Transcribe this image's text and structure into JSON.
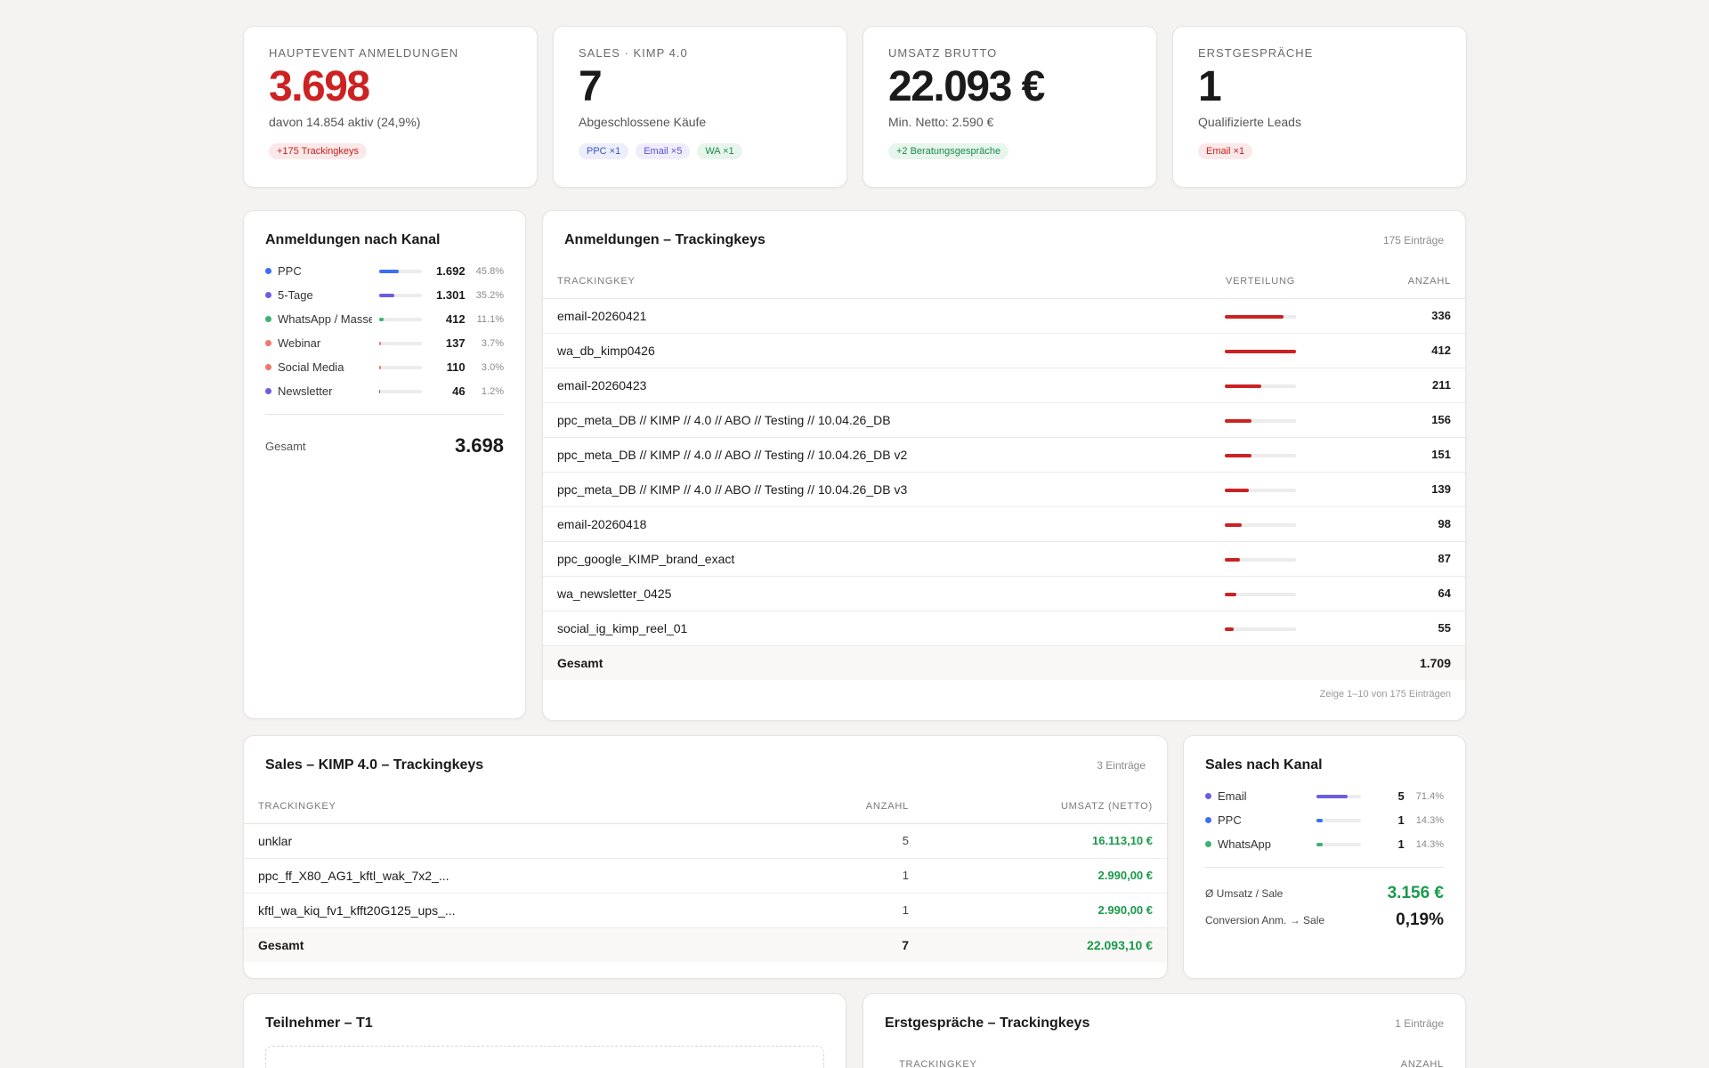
{
  "colors": {
    "red": "#cc2222",
    "green": "#1a9a4a",
    "blue": "#3b6ef5",
    "indigo": "#6a5ee0",
    "emerald": "#3cb371",
    "salmon": "#f0776a"
  },
  "kpis": [
    {
      "label": "HAUPTEVENT ANMELDUNGEN",
      "value": "3.698",
      "sub": "davon 14.854 aktiv (24,9%)",
      "pills": [
        "+175 Trackingkeys"
      ]
    },
    {
      "label": "SALES · KIMP 4.0",
      "value": "7",
      "sub": "Abgeschlossene Käufe",
      "pills": [
        "PPC ×1",
        "Email ×5",
        "WA ×1"
      ]
    },
    {
      "label": "UMSATZ BRUTTO",
      "value": "22.093 €",
      "sub": "Min. Netto: 2.590 €",
      "pills": [
        "+2 Beratungsgespräche"
      ]
    },
    {
      "label": "ERSTGESPRÄCHE",
      "value": "1",
      "sub": "Qualifizierte Leads",
      "pills": [
        "Email ×1"
      ]
    }
  ],
  "kanal": {
    "title": "Anmeldungen nach Kanal",
    "rows": [
      {
        "name": "PPC",
        "count": "1.692",
        "pct": "45.8%",
        "share": 0.458,
        "color": "#3b6ef5"
      },
      {
        "name": "5-Tage",
        "count": "1.301",
        "pct": "35.2%",
        "share": 0.352,
        "color": "#6a5ee0"
      },
      {
        "name": "WhatsApp / Masse",
        "count": "412",
        "pct": "11.1%",
        "share": 0.111,
        "color": "#3cb371"
      },
      {
        "name": "Webinar",
        "count": "137",
        "pct": "3.7%",
        "share": 0.037,
        "color": "#f0776a"
      },
      {
        "name": "Social Media",
        "count": "110",
        "pct": "3.0%",
        "share": 0.03,
        "color": "#f0776a"
      },
      {
        "name": "Newsletter",
        "count": "46",
        "pct": "1.2%",
        "share": 0.012,
        "color": "#6a5ee0"
      }
    ],
    "total_label": "Gesamt",
    "total": "3.698"
  },
  "tk": {
    "title": "Anmeldungen – Trackingkeys",
    "entries": "175 Einträge",
    "headers": [
      "TRACKINGKEY",
      "VERTEILUNG",
      "ANZAHL"
    ],
    "rows": [
      {
        "key": "email-20260421",
        "count": "336",
        "share": 0.82
      },
      {
        "key": "wa_db_kimp0426",
        "count": "412",
        "share": 1.0
      },
      {
        "key": "email-20260423",
        "count": "211",
        "share": 0.51
      },
      {
        "key": "ppc_meta_DB // KIMP // 4.0 // ABO // Testing // 10.04.26_DB",
        "count": "156",
        "share": 0.38
      },
      {
        "key": "ppc_meta_DB // KIMP // 4.0 // ABO // Testing // 10.04.26_DB v2",
        "count": "151",
        "share": 0.37
      },
      {
        "key": "ppc_meta_DB // KIMP // 4.0 // ABO // Testing // 10.04.26_DB v3",
        "count": "139",
        "share": 0.34
      },
      {
        "key": "email-20260418",
        "count": "98",
        "share": 0.24
      },
      {
        "key": "ppc_google_KIMP_brand_exact",
        "count": "87",
        "share": 0.21
      },
      {
        "key": "wa_newsletter_0425",
        "count": "64",
        "share": 0.16
      },
      {
        "key": "social_ig_kimp_reel_01",
        "count": "55",
        "share": 0.13
      }
    ],
    "total_label": "Gesamt",
    "total": "1.709",
    "footer": "Zeige 1–10 von 175 Einträgen"
  },
  "sales": {
    "title": "Sales – KIMP 4.0 – Trackingkeys",
    "entries": "3 Einträge",
    "headers": [
      "TRACKINGKEY",
      "ANZAHL",
      "UMSATZ (NETTO)"
    ],
    "rows": [
      {
        "key": "unklar",
        "count": "5",
        "amount": "16.113,10 €"
      },
      {
        "key": "ppc_ff_X80_AG1_kftl_wak_7x2_...",
        "count": "1",
        "amount": "2.990,00 €"
      },
      {
        "key": "kftl_wa_kiq_fv1_kfft20G125_ups_...",
        "count": "1",
        "amount": "2.990,00 €"
      }
    ],
    "total_label": "Gesamt",
    "total_count": "7",
    "total_amount": "22.093,10 €"
  },
  "sales_kanal": {
    "title": "Sales nach Kanal",
    "rows": [
      {
        "name": "Email",
        "count": "5",
        "pct": "71.4%",
        "share": 0.714,
        "color": "#6a5ee0"
      },
      {
        "name": "PPC",
        "count": "1",
        "pct": "14.3%",
        "share": 0.143,
        "color": "#3b6ef5"
      },
      {
        "name": "WhatsApp",
        "count": "1",
        "pct": "14.3%",
        "share": 0.143,
        "color": "#3cb371"
      }
    ],
    "avg_label": "Ø Umsatz / Sale",
    "avg_value": "3.156 €",
    "conv_label": "Conversion Anm. → Sale",
    "conv_value": "0,19%"
  },
  "teilnehmer": {
    "title": "Teilnehmer – T1"
  },
  "erst": {
    "title": "Erstgespräche – Trackingkeys",
    "entries": "1 Einträge",
    "headers": [
      "TRACKINGKEY",
      "ANZAHL"
    ]
  }
}
